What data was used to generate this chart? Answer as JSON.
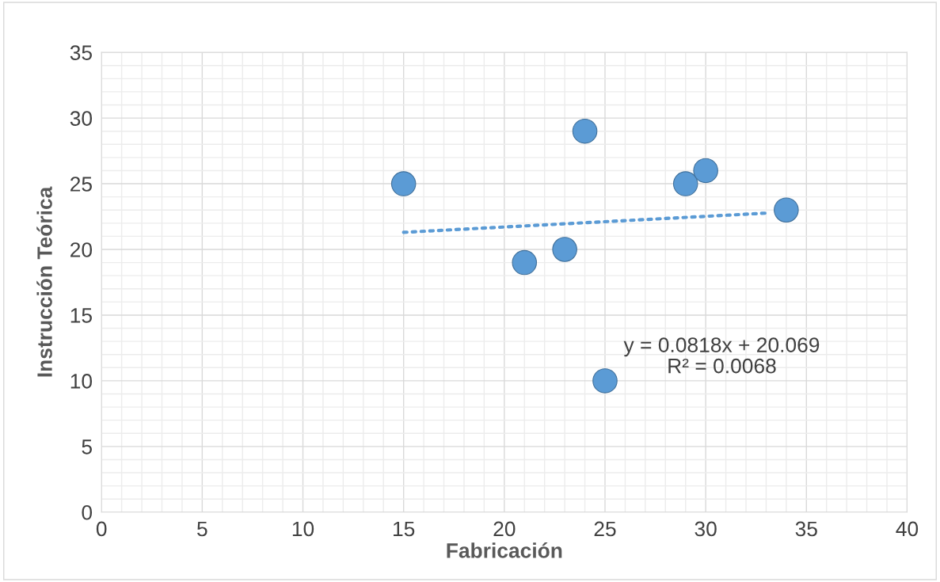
{
  "chart_data": {
    "type": "scatter",
    "xlabel": "Fabricación",
    "ylabel": "Instrucción Teórica",
    "xlim": [
      0,
      40
    ],
    "xticks": [
      0,
      5,
      10,
      15,
      20,
      25,
      30,
      35,
      40
    ],
    "ylim": [
      0,
      35
    ],
    "yticks": [
      0,
      5,
      10,
      15,
      20,
      25,
      30,
      35
    ],
    "grid": true,
    "marker": "circle",
    "series": [
      {
        "color": "#5b9bd5",
        "x": [
          15,
          21,
          23,
          24,
          25,
          29,
          30,
          34
        ],
        "values": [
          25,
          19,
          20,
          29,
          10,
          25,
          26,
          23
        ]
      },
      {
        "type": "line",
        "color": "#5b9bd5",
        "line_style": "dotted",
        "marker": "none",
        "x": [
          15,
          33.2
        ],
        "values": [
          21.3,
          22.78
        ]
      }
    ],
    "annotations": [
      "y = 0.0818x + 20.069",
      "R² = 0.0068"
    ]
  }
}
